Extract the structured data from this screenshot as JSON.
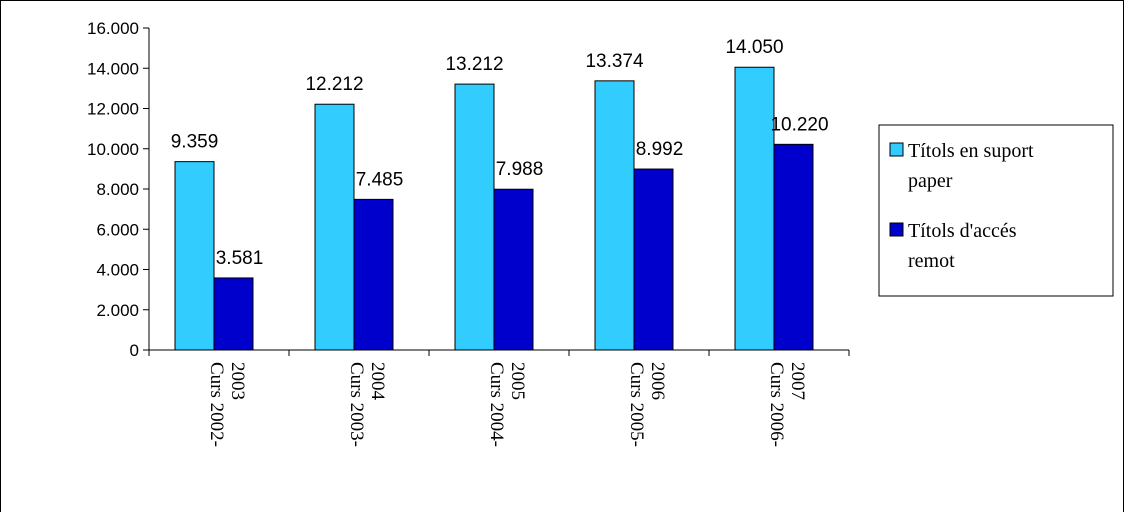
{
  "chart_data": {
    "type": "bar",
    "categories": [
      [
        "Curs 2002-",
        "2003"
      ],
      [
        "Curs 2003-",
        "2004"
      ],
      [
        "Curs 2004-",
        "2005"
      ],
      [
        "Curs 2005-",
        "2006"
      ],
      [
        "Curs 2006-",
        "2007"
      ]
    ],
    "series": [
      {
        "name": "Títols en suport paper",
        "legend_lines": [
          "Títols en suport",
          "paper"
        ],
        "color": "#33ccff",
        "values": [
          9359,
          12212,
          13212,
          13374,
          14050
        ],
        "labels": [
          "9.359",
          "12.212",
          "13.212",
          "13.374",
          "14.050"
        ]
      },
      {
        "name": "Títols d'accés remot",
        "legend_lines": [
          "Títols d'accés",
          "remot"
        ],
        "color": "#0000cc",
        "values": [
          3581,
          7485,
          7988,
          8992,
          10220
        ],
        "labels": [
          "3.581",
          "7.485",
          "7.988",
          "8.992",
          "10.220"
        ]
      }
    ],
    "ylim": [
      0,
      16000
    ],
    "yticks": [
      0,
      2000,
      4000,
      6000,
      8000,
      10000,
      12000,
      14000,
      16000
    ],
    "ytick_labels": [
      "0",
      "2.000",
      "4.000",
      "6.000",
      "8.000",
      "10.000",
      "12.000",
      "14.000",
      "16.000"
    ],
    "title": "",
    "xlabel": "",
    "ylabel": "",
    "grid": false,
    "legend_position": "right"
  }
}
